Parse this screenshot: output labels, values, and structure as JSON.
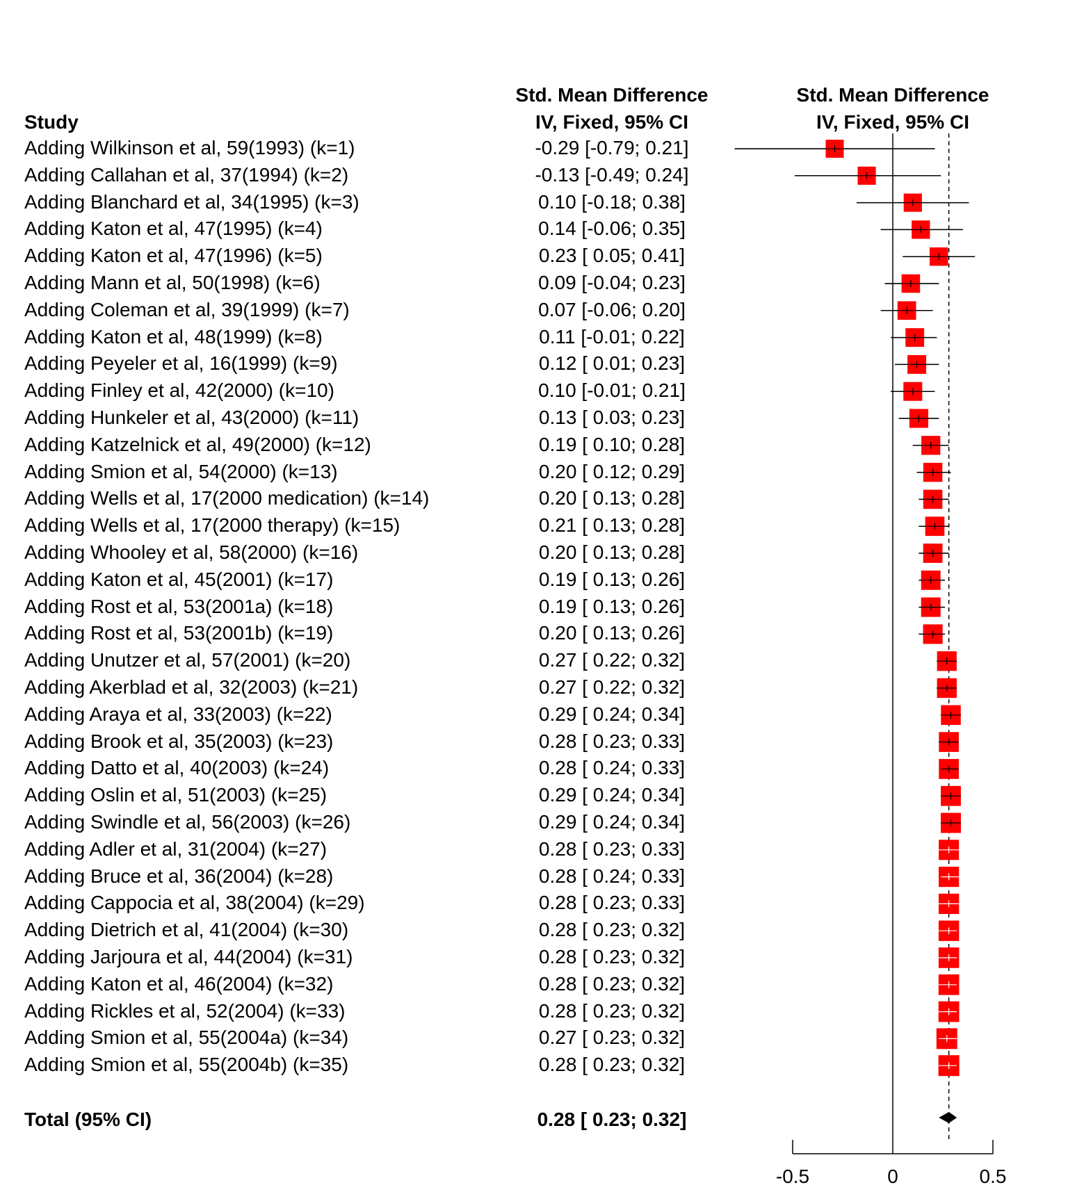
{
  "header": {
    "study_label": "Study",
    "ci_col_line1": "Std. Mean Difference",
    "ci_col_line2": "IV, Fixed, 95% CI",
    "plot_col_line1": "Std. Mean Difference",
    "plot_col_line2": "IV, Fixed, 95% CI"
  },
  "total": {
    "label": "Total (95% CI)",
    "ci_text": "0.28 [ 0.23; 0.32]"
  },
  "chart_data": {
    "type": "forest",
    "xlim": [
      -0.5,
      0.5
    ],
    "x_ticks": [
      -0.5,
      0,
      0.5
    ],
    "x_tick_labels": [
      "-0.5",
      "0",
      "0.5"
    ],
    "reference_line": 0,
    "summary_line": 0.28,
    "marker_color": "#ff0000",
    "rows": [
      {
        "study": "Adding Wilkinson et al, 59(1993) (k=1)",
        "ci_text": "-0.29 [-0.79; 0.21]",
        "est": -0.29,
        "lo": -0.79,
        "hi": 0.21
      },
      {
        "study": "Adding Callahan et al, 37(1994) (k=2)",
        "ci_text": "-0.13 [-0.49; 0.24]",
        "est": -0.13,
        "lo": -0.49,
        "hi": 0.24
      },
      {
        "study": "Adding Blanchard et al, 34(1995) (k=3)",
        "ci_text": "0.10 [-0.18; 0.38]",
        "est": 0.1,
        "lo": -0.18,
        "hi": 0.38
      },
      {
        "study": "Adding Katon et al, 47(1995) (k=4)",
        "ci_text": "0.14 [-0.06; 0.35]",
        "est": 0.14,
        "lo": -0.06,
        "hi": 0.35
      },
      {
        "study": "Adding Katon et al, 47(1996) (k=5)",
        "ci_text": "0.23 [ 0.05; 0.41]",
        "est": 0.23,
        "lo": 0.05,
        "hi": 0.41
      },
      {
        "study": "Adding Mann et al, 50(1998) (k=6)",
        "ci_text": "0.09 [-0.04; 0.23]",
        "est": 0.09,
        "lo": -0.04,
        "hi": 0.23
      },
      {
        "study": "Adding Coleman et al, 39(1999) (k=7)",
        "ci_text": "0.07 [-0.06; 0.20]",
        "est": 0.07,
        "lo": -0.06,
        "hi": 0.2
      },
      {
        "study": "Adding Katon et al, 48(1999) (k=8)",
        "ci_text": "0.11 [-0.01; 0.22]",
        "est": 0.11,
        "lo": -0.01,
        "hi": 0.22
      },
      {
        "study": "Adding Peyeler et al, 16(1999) (k=9)",
        "ci_text": "0.12 [ 0.01; 0.23]",
        "est": 0.12,
        "lo": 0.01,
        "hi": 0.23
      },
      {
        "study": "Adding Finley et al, 42(2000) (k=10)",
        "ci_text": "0.10 [-0.01; 0.21]",
        "est": 0.1,
        "lo": -0.01,
        "hi": 0.21
      },
      {
        "study": "Adding Hunkeler et al, 43(2000) (k=11)",
        "ci_text": "0.13 [ 0.03; 0.23]",
        "est": 0.13,
        "lo": 0.03,
        "hi": 0.23
      },
      {
        "study": "Adding Katzelnick et al, 49(2000) (k=12)",
        "ci_text": "0.19 [ 0.10; 0.28]",
        "est": 0.19,
        "lo": 0.1,
        "hi": 0.28
      },
      {
        "study": "Adding Smion et al, 54(2000) (k=13)",
        "ci_text": "0.20 [ 0.12; 0.29]",
        "est": 0.2,
        "lo": 0.12,
        "hi": 0.29
      },
      {
        "study": "Adding Wells et al, 17(2000 medication) (k=14)",
        "ci_text": "0.20 [ 0.13; 0.28]",
        "est": 0.2,
        "lo": 0.13,
        "hi": 0.28
      },
      {
        "study": "Adding Wells et al, 17(2000 therapy) (k=15)",
        "ci_text": "0.21 [ 0.13; 0.28]",
        "est": 0.21,
        "lo": 0.13,
        "hi": 0.28
      },
      {
        "study": "Adding Whooley et al, 58(2000) (k=16)",
        "ci_text": "0.20 [ 0.13; 0.28]",
        "est": 0.2,
        "lo": 0.13,
        "hi": 0.28
      },
      {
        "study": "Adding Katon et al, 45(2001) (k=17)",
        "ci_text": "0.19 [ 0.13; 0.26]",
        "est": 0.19,
        "lo": 0.13,
        "hi": 0.26
      },
      {
        "study": "Adding Rost et al, 53(2001a) (k=18)",
        "ci_text": "0.19 [ 0.13; 0.26]",
        "est": 0.19,
        "lo": 0.13,
        "hi": 0.26
      },
      {
        "study": "Adding Rost et al, 53(2001b) (k=19)",
        "ci_text": "0.20 [ 0.13; 0.26]",
        "est": 0.2,
        "lo": 0.13,
        "hi": 0.26
      },
      {
        "study": "Adding Unutzer et al, 57(2001) (k=20)",
        "ci_text": "0.27 [ 0.22; 0.32]",
        "est": 0.27,
        "lo": 0.22,
        "hi": 0.32
      },
      {
        "study": "Adding Akerblad et al, 32(2003) (k=21)",
        "ci_text": "0.27 [ 0.22; 0.32]",
        "est": 0.27,
        "lo": 0.22,
        "hi": 0.32
      },
      {
        "study": "Adding Araya et al, 33(2003) (k=22)",
        "ci_text": "0.29 [ 0.24; 0.34]",
        "est": 0.29,
        "lo": 0.24,
        "hi": 0.34
      },
      {
        "study": "Adding Brook et al, 35(2003) (k=23)",
        "ci_text": "0.28 [ 0.23; 0.33]",
        "est": 0.28,
        "lo": 0.23,
        "hi": 0.33
      },
      {
        "study": "Adding Datto et al, 40(2003) (k=24)",
        "ci_text": "0.28 [ 0.24; 0.33]",
        "est": 0.28,
        "lo": 0.24,
        "hi": 0.33
      },
      {
        "study": "Adding Oslin et al, 51(2003) (k=25)",
        "ci_text": "0.29 [ 0.24; 0.34]",
        "est": 0.29,
        "lo": 0.24,
        "hi": 0.34
      },
      {
        "study": "Adding Swindle et al, 56(2003) (k=26)",
        "ci_text": "0.29 [ 0.24; 0.34]",
        "est": 0.29,
        "lo": 0.24,
        "hi": 0.34
      },
      {
        "study": "Adding Adler et al, 31(2004) (k=27)",
        "ci_text": "0.28 [ 0.23; 0.33]",
        "est": 0.28,
        "lo": 0.23,
        "hi": 0.33
      },
      {
        "study": "Adding Bruce et al, 36(2004) (k=28)",
        "ci_text": "0.28 [ 0.24; 0.33]",
        "est": 0.28,
        "lo": 0.24,
        "hi": 0.33
      },
      {
        "study": "Adding Cappocia et al, 38(2004) (k=29)",
        "ci_text": "0.28 [ 0.23; 0.33]",
        "est": 0.28,
        "lo": 0.23,
        "hi": 0.33
      },
      {
        "study": "Adding Dietrich et al, 41(2004) (k=30)",
        "ci_text": "0.28 [ 0.23; 0.32]",
        "est": 0.28,
        "lo": 0.23,
        "hi": 0.32
      },
      {
        "study": "Adding Jarjoura et al, 44(2004) (k=31)",
        "ci_text": "0.28 [ 0.23; 0.32]",
        "est": 0.28,
        "lo": 0.23,
        "hi": 0.32
      },
      {
        "study": "Adding Katon et al, 46(2004) (k=32)",
        "ci_text": "0.28 [ 0.23; 0.32]",
        "est": 0.28,
        "lo": 0.23,
        "hi": 0.32
      },
      {
        "study": "Adding Rickles et al, 52(2004) (k=33)",
        "ci_text": "0.28 [ 0.23; 0.32]",
        "est": 0.28,
        "lo": 0.23,
        "hi": 0.32
      },
      {
        "study": "Adding Smion et al, 55(2004a) (k=34)",
        "ci_text": "0.27 [ 0.23; 0.32]",
        "est": 0.27,
        "lo": 0.23,
        "hi": 0.32
      },
      {
        "study": "Adding Smion et al, 55(2004b) (k=35)",
        "ci_text": "0.28 [ 0.23; 0.32]",
        "est": 0.28,
        "lo": 0.23,
        "hi": 0.32
      }
    ],
    "summary": {
      "est": 0.28,
      "lo": 0.23,
      "hi": 0.32
    }
  }
}
